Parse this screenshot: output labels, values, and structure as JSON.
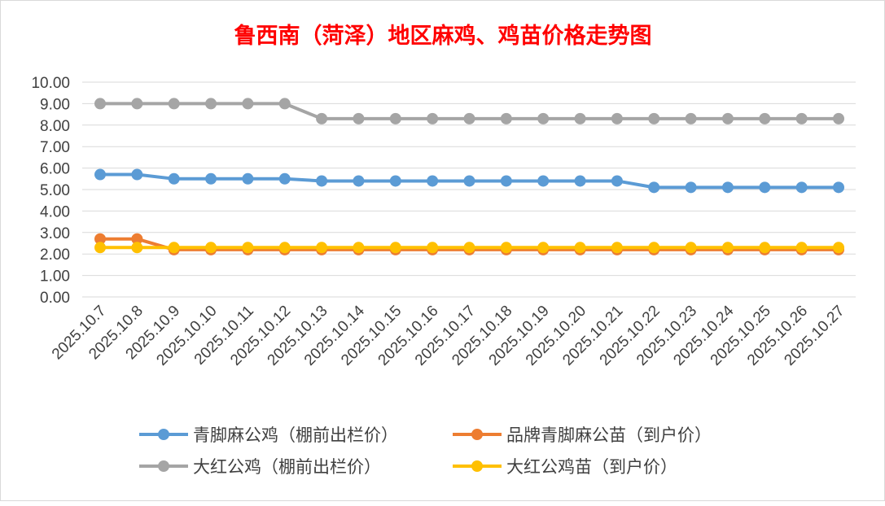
{
  "chart_data": {
    "type": "line",
    "title": "鲁西南（菏泽）地区麻鸡、鸡苗价格走势图",
    "xlabel": "",
    "ylabel": "",
    "ylim": [
      0,
      10
    ],
    "y_ticks": [
      "0.00",
      "1.00",
      "2.00",
      "3.00",
      "4.00",
      "5.00",
      "6.00",
      "7.00",
      "8.00",
      "9.00",
      "10.00"
    ],
    "grid": true,
    "legend_position": "bottom",
    "categories": [
      "2025.10.7",
      "2025.10.8",
      "2025.10.9",
      "2025.10.10",
      "2025.10.11",
      "2025.10.12",
      "2025.10.13",
      "2025.10.14",
      "2025.10.15",
      "2025.10.16",
      "2025.10.17",
      "2025.10.18",
      "2025.10.19",
      "2025.10.20",
      "2025.10.21",
      "2025.10.22",
      "2025.10.23",
      "2025.10.24",
      "2025.10.25",
      "2025.10.26",
      "2025.10.27"
    ],
    "series": [
      {
        "name": "青脚麻公鸡（棚前出栏价）",
        "color": "#5b9bd5",
        "values": [
          5.7,
          5.7,
          5.5,
          5.5,
          5.5,
          5.5,
          5.4,
          5.4,
          5.4,
          5.4,
          5.4,
          5.4,
          5.4,
          5.4,
          5.4,
          5.1,
          5.1,
          5.1,
          5.1,
          5.1,
          5.1
        ]
      },
      {
        "name": "品牌青脚麻公苗（到户价）",
        "color": "#ed7d31",
        "values": [
          2.7,
          2.7,
          2.2,
          2.2,
          2.2,
          2.2,
          2.2,
          2.2,
          2.2,
          2.2,
          2.2,
          2.2,
          2.2,
          2.2,
          2.2,
          2.2,
          2.2,
          2.2,
          2.2,
          2.2,
          2.2
        ]
      },
      {
        "name": "大红公鸡（棚前出栏价）",
        "color": "#a5a5a5",
        "values": [
          9.0,
          9.0,
          9.0,
          9.0,
          9.0,
          9.0,
          8.3,
          8.3,
          8.3,
          8.3,
          8.3,
          8.3,
          8.3,
          8.3,
          8.3,
          8.3,
          8.3,
          8.3,
          8.3,
          8.3,
          8.3
        ]
      },
      {
        "name": "大红公鸡苗（到户价）",
        "color": "#ffc000",
        "values": [
          2.3,
          2.3,
          2.3,
          2.3,
          2.3,
          2.3,
          2.3,
          2.3,
          2.3,
          2.3,
          2.3,
          2.3,
          2.3,
          2.3,
          2.3,
          2.3,
          2.3,
          2.3,
          2.3,
          2.3,
          2.3
        ]
      }
    ]
  }
}
